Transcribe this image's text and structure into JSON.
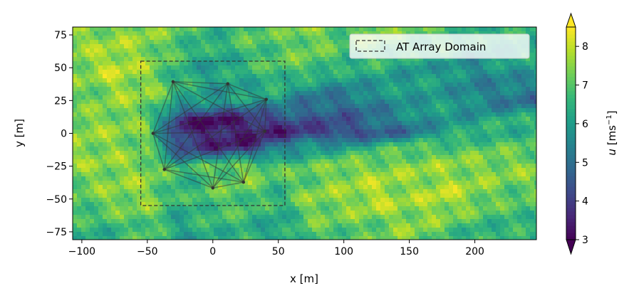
{
  "chart_data": {
    "type": "heatmap",
    "xlabel": "x [m]",
    "ylabel": "y [m]",
    "xlim": [
      -107,
      247
    ],
    "ylim": [
      -81,
      81
    ],
    "xticks": [
      -100,
      -50,
      0,
      50,
      100,
      150,
      200
    ],
    "yticks": [
      -75,
      -50,
      -25,
      0,
      25,
      50,
      75
    ],
    "colormap": "viridis",
    "colorbar": {
      "label_var": "u",
      "label_units": "[ms",
      "label_exp": "−1",
      "label_close": "]",
      "range": [
        3,
        8.5
      ],
      "ticks": [
        3,
        4,
        5,
        6,
        7,
        8
      ],
      "extend": "both"
    },
    "field_grid": {
      "x": [
        -100,
        -75,
        -50,
        -25,
        0,
        25,
        50,
        75,
        100,
        125,
        150,
        175,
        200,
        225
      ],
      "y": [
        75,
        50,
        25,
        10,
        0,
        -10,
        -25,
        -50,
        -75
      ],
      "u_approx": [
        [
          7.5,
          7.5,
          7.5,
          7,
          6.5,
          7,
          7,
          7.5,
          7,
          7.5,
          7,
          7,
          6.5,
          6.5
        ],
        [
          7.5,
          8,
          7.5,
          6.5,
          6,
          6.5,
          7,
          7,
          6.5,
          6.5,
          6,
          6,
          5.5,
          6
        ],
        [
          7,
          7.5,
          7.5,
          6.5,
          6,
          6,
          6,
          5,
          5,
          5.5,
          6,
          6,
          5.5,
          5
        ],
        [
          7.5,
          7.5,
          7,
          3.5,
          3,
          3.5,
          4,
          4.5,
          4.5,
          5,
          5.5,
          6,
          6,
          6.5
        ],
        [
          7.5,
          7.5,
          7.5,
          4,
          3.5,
          3.5,
          3.5,
          4,
          4,
          4.5,
          5,
          6,
          6.5,
          6.5
        ],
        [
          7.5,
          7.5,
          7,
          4,
          3.5,
          3.5,
          5,
          6,
          6,
          6.5,
          7,
          7,
          7,
          7
        ],
        [
          7.5,
          7.5,
          7.5,
          6.5,
          7,
          7.5,
          7,
          7,
          7.5,
          7.5,
          7.5,
          7.5,
          7.5,
          7.5
        ],
        [
          7,
          7.5,
          7.5,
          6.5,
          7,
          7,
          6.5,
          7.5,
          7.5,
          8,
          7.5,
          8,
          7.5,
          7
        ],
        [
          6.5,
          6.5,
          7,
          6,
          6.5,
          6.5,
          6,
          7,
          7,
          7,
          7.5,
          7,
          6.5,
          6.5
        ]
      ]
    },
    "domain_box": {
      "name": "AT Array Domain",
      "x": [
        -55,
        55
      ],
      "y": [
        -55,
        55
      ]
    },
    "array_nodes": [
      [
        -30.4,
        39.4
      ],
      [
        11.4,
        37.8
      ],
      [
        40.8,
        25.9
      ],
      [
        39.7,
        1.6
      ],
      [
        23.4,
        -37.2
      ],
      [
        0,
        -41.6
      ],
      [
        -37,
        -27.5
      ],
      [
        -45.7,
        0
      ]
    ],
    "legend": {
      "position": "top-right",
      "entries": [
        "AT Array Domain"
      ]
    }
  }
}
